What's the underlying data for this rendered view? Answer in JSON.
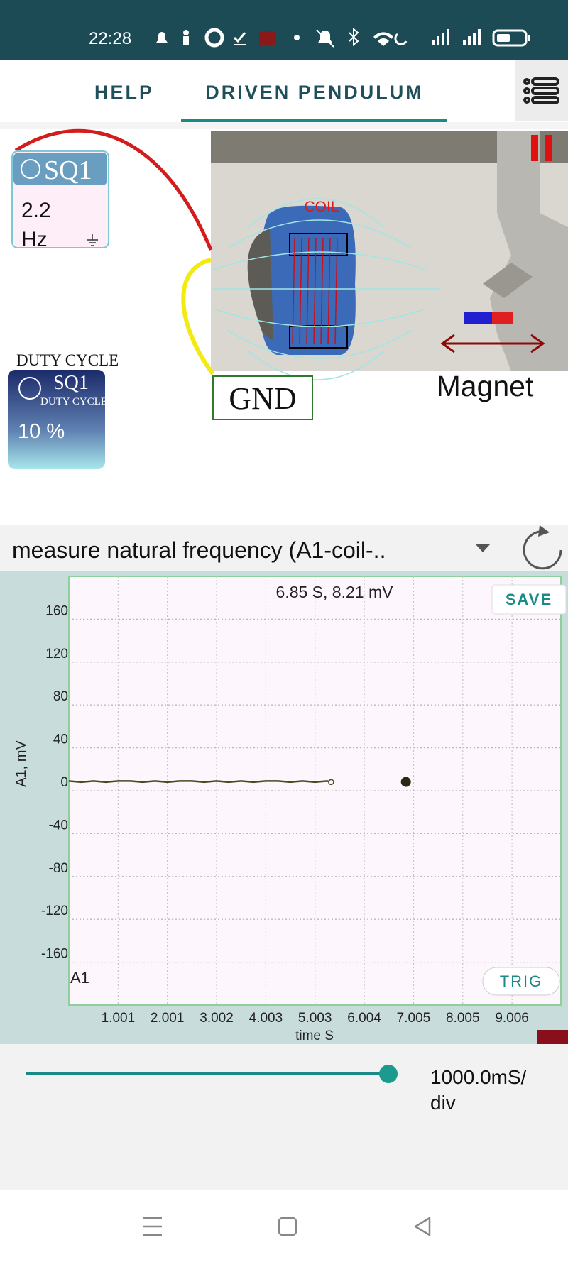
{
  "status_bar": {
    "time": "22:28"
  },
  "tabs": [
    "HELP",
    "DRIVEN PENDULUM"
  ],
  "sq1": {
    "title": "SQ1",
    "frequency": "2.2",
    "unit": "Hz"
  },
  "duty_cycle": {
    "caption": "DUTY CYCLE",
    "title": "SQ1",
    "subtitle": "DUTY CYCLE",
    "value": "10 %"
  },
  "experiment": {
    "coil": "COIL",
    "gnd": "GND",
    "magnet": "Magnet"
  },
  "selector": "measure natural frequency (A1-coil-..",
  "chart_data": {
    "type": "line",
    "xlabel": "time S",
    "ylabel": "A1, mV",
    "trace_label": "A1",
    "xlim": [
      0,
      10
    ],
    "ylim": [
      -200,
      200
    ],
    "xticks": [
      1.001,
      2.001,
      3.002,
      4.003,
      5.003,
      6.004,
      7.005,
      8.005,
      9.006
    ],
    "yticks": [
      160,
      120,
      80,
      40,
      0,
      -40,
      -80,
      -120,
      -160
    ],
    "grid": true,
    "series": [
      {
        "name": "A1",
        "color": "#4a4a1e",
        "x": [
          0,
          0.25,
          0.5,
          0.75,
          1,
          1.25,
          1.5,
          1.75,
          2,
          2.25,
          2.5,
          2.75,
          3,
          3.25,
          3.5,
          3.75,
          4,
          4.25,
          4.5,
          4.75,
          5,
          5.25,
          5.33
        ],
        "values": [
          9,
          8,
          9,
          8,
          9,
          9,
          8,
          9,
          8,
          9,
          9,
          8,
          9,
          8,
          9,
          8,
          9,
          9,
          8,
          9,
          8,
          9,
          8
        ]
      }
    ],
    "cursor": {
      "label": "6.85 S, 8.21 mV",
      "x": 6.85,
      "y": 8.21
    },
    "buttons": [
      "SAVE",
      "TRIG"
    ]
  },
  "slider": {
    "label": [
      "1000.0mS/",
      "div"
    ]
  }
}
